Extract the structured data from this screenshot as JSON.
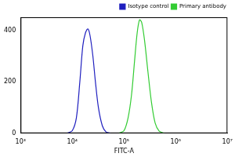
{
  "chart_data": {
    "type": "line",
    "log": "x",
    "grid": false,
    "legend": "top right",
    "x_label": "FITC-A",
    "xlim": [
      1000,
      10000000
    ],
    "xticks": [
      {
        "value": 1000,
        "label": "10³"
      },
      {
        "value": 10000,
        "label": "10⁴"
      },
      {
        "value": 100000,
        "label": "10⁵"
      },
      {
        "value": 1000000,
        "label": "10⁶"
      },
      {
        "value": 10000000,
        "label": "10⁷"
      }
    ],
    "ylim": [
      0,
      450
    ],
    "yticks": [
      0,
      200,
      400
    ],
    "series": [
      {
        "name": "Isotype control",
        "color": "#1f1fbf",
        "x": [
          8000,
          10000,
          12000,
          14000,
          16000,
          18000,
          20000,
          22000,
          25000,
          28000,
          32000,
          38000,
          45000,
          55000
        ],
        "values": [
          0,
          10,
          60,
          200,
          340,
          390,
          405,
          380,
          300,
          200,
          100,
          30,
          5,
          0
        ]
      },
      {
        "name": "Primary antibody",
        "color": "#33cc33",
        "x": [
          80000,
          100000,
          120000,
          140000,
          160000,
          180000,
          200000,
          220000,
          250000,
          290000,
          340000,
          400000,
          480000,
          600000
        ],
        "values": [
          0,
          10,
          60,
          150,
          280,
          390,
          440,
          430,
          360,
          240,
          120,
          40,
          8,
          0
        ]
      }
    ]
  }
}
